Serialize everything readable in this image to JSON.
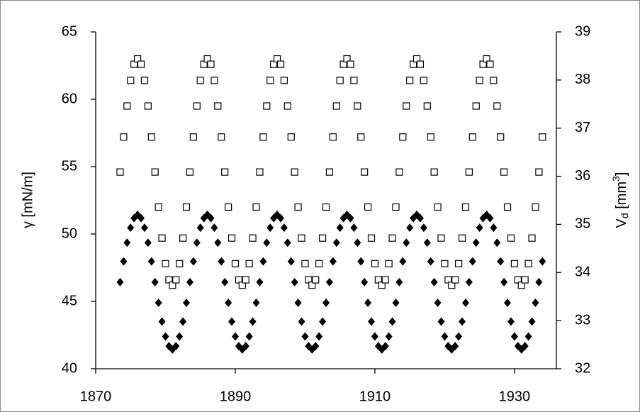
{
  "chart_data": {
    "type": "scatter",
    "ylabel": "γ [mN/m]",
    "y2label": {
      "main": "V",
      "sub": "d",
      "unit": " [mm",
      "sup": "3",
      "end": "]"
    },
    "xlim": [
      1870,
      1936
    ],
    "xticks": [
      1870,
      1890,
      1910,
      1930
    ],
    "ylim": [
      40,
      65
    ],
    "yticks": [
      40,
      45,
      50,
      55,
      60,
      65
    ],
    "y2lim": [
      32,
      39
    ],
    "y2ticks": [
      32,
      33,
      34,
      35,
      36,
      37,
      38,
      39
    ],
    "x": [
      1873.5,
      1874,
      1874.5,
      1875,
      1875.5,
      1876,
      1876.5,
      1877,
      1877.5,
      1878,
      1878.5,
      1879,
      1879.5,
      1880,
      1880.5,
      1881,
      1881.5,
      1882,
      1882.5,
      1883,
      1883.5,
      1884,
      1884.5,
      1885,
      1885.5,
      1886,
      1886.5,
      1887,
      1887.5,
      1888,
      1888.5,
      1889,
      1889.5,
      1890,
      1890.5,
      1891,
      1891.5,
      1892,
      1892.5,
      1893,
      1893.5,
      1894,
      1894.5,
      1895,
      1895.5,
      1896,
      1896.5,
      1897,
      1897.5,
      1898,
      1898.5,
      1899,
      1899.5,
      1900,
      1900.5,
      1901,
      1901.5,
      1902,
      1902.5,
      1903,
      1903.5,
      1904,
      1904.5,
      1905,
      1905.5,
      1906,
      1906.5,
      1907,
      1907.5,
      1908,
      1908.5,
      1909,
      1909.5,
      1910,
      1910.5,
      1911,
      1911.5,
      1912,
      1912.5,
      1913,
      1913.5,
      1914,
      1914.5,
      1915,
      1915.5,
      1916,
      1916.5,
      1917,
      1917.5,
      1918,
      1918.5,
      1919,
      1919.5,
      1920,
      1920.5,
      1921,
      1921.5,
      1922,
      1922.5,
      1923,
      1923.5,
      1924,
      1924.5,
      1925,
      1925.5,
      1926,
      1926.5,
      1927,
      1927.5,
      1928,
      1928.5,
      1929,
      1929.5,
      1930,
      1930.5,
      1931,
      1931.5,
      1932,
      1932.5,
      1933,
      1933.5,
      1934
    ],
    "series": [
      {
        "marker": "square",
        "color": "#000000",
        "axis": "y",
        "values": [
          54.6,
          57.2,
          59.5,
          61.4,
          62.6,
          63.0,
          62.6,
          61.4,
          59.5,
          57.2,
          54.6,
          52.0,
          49.7,
          47.8,
          46.6,
          46.2,
          46.6,
          47.8,
          49.7,
          52.0,
          54.6,
          57.2,
          59.5,
          61.4,
          62.6,
          63.0,
          62.6,
          61.4,
          59.5,
          57.2,
          54.6,
          52.0,
          49.7,
          47.8,
          46.6,
          46.2,
          46.6,
          47.8,
          49.7,
          52.0,
          54.6,
          57.2,
          59.5,
          61.4,
          62.6,
          63.0,
          62.6,
          61.4,
          59.5,
          57.2,
          54.6,
          52.0,
          49.7,
          47.8,
          46.6,
          46.2,
          46.6,
          47.8,
          49.7,
          52.0,
          54.6,
          57.2,
          59.5,
          61.4,
          62.6,
          63.0,
          62.6,
          61.4,
          59.5,
          57.2,
          54.6,
          52.0,
          49.7,
          47.8,
          46.6,
          46.2,
          46.6,
          47.8,
          49.7,
          52.0,
          54.6,
          57.2,
          59.5,
          61.4,
          62.6,
          63.0,
          62.6,
          61.4,
          59.5,
          57.2,
          54.6,
          52.0,
          49.7,
          47.8,
          46.6,
          46.2,
          46.6,
          47.8,
          49.7,
          52.0,
          54.6,
          57.2,
          59.5,
          61.4,
          62.6,
          63.0,
          62.6,
          61.4,
          59.5,
          57.2,
          54.6,
          52.0,
          49.7,
          47.8,
          46.6,
          46.2,
          46.6,
          47.8,
          49.7,
          52.0,
          54.6,
          57.2
        ]
      },
      {
        "marker": "diamond",
        "color": "#000000",
        "axis": "y2",
        "values": [
          33.8,
          34.23,
          34.62,
          34.93,
          35.13,
          35.2,
          35.13,
          34.93,
          34.62,
          34.23,
          33.8,
          33.37,
          32.98,
          32.67,
          32.47,
          32.4,
          32.47,
          32.67,
          32.98,
          33.37,
          33.8,
          34.23,
          34.62,
          34.93,
          35.13,
          35.2,
          35.13,
          34.93,
          34.62,
          34.23,
          33.8,
          33.37,
          32.98,
          32.67,
          32.47,
          32.4,
          32.47,
          32.67,
          32.98,
          33.37,
          33.8,
          34.23,
          34.62,
          34.93,
          35.13,
          35.2,
          35.13,
          34.93,
          34.62,
          34.23,
          33.8,
          33.37,
          32.98,
          32.67,
          32.47,
          32.4,
          32.47,
          32.67,
          32.98,
          33.37,
          33.8,
          34.23,
          34.62,
          34.93,
          35.13,
          35.2,
          35.13,
          34.93,
          34.62,
          34.23,
          33.8,
          33.37,
          32.98,
          32.67,
          32.47,
          32.4,
          32.47,
          32.67,
          32.98,
          33.37,
          33.8,
          34.23,
          34.62,
          34.93,
          35.13,
          35.2,
          35.13,
          34.93,
          34.62,
          34.23,
          33.8,
          33.37,
          32.98,
          32.67,
          32.47,
          32.4,
          32.47,
          32.67,
          32.98,
          33.37,
          33.8,
          34.23,
          34.62,
          34.93,
          35.13,
          35.2,
          35.13,
          34.93,
          34.62,
          34.23,
          33.8,
          33.37,
          32.98,
          32.67,
          32.47,
          32.4,
          32.47,
          32.67,
          32.98,
          33.37,
          33.8,
          34.23
        ]
      }
    ]
  }
}
